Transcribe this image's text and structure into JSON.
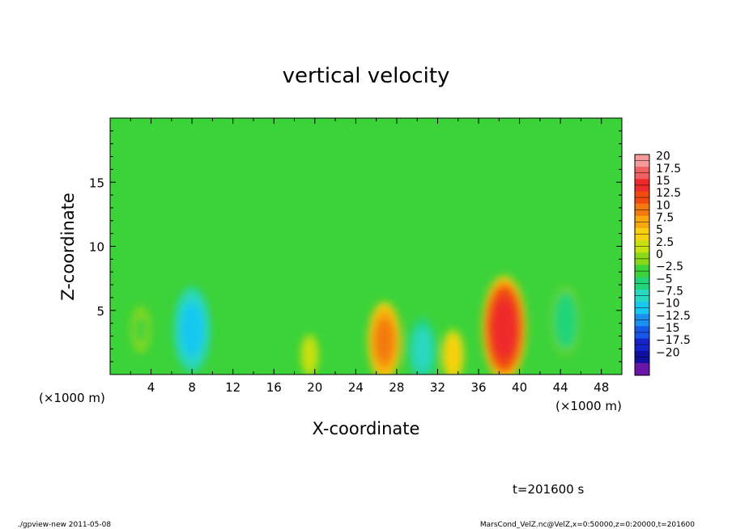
{
  "chart_data": {
    "type": "heatmap",
    "title": "vertical velocity",
    "xlabel": "X-coordinate",
    "ylabel": "Z-coordinate",
    "x_unit": "(×1000 m)",
    "y_unit": "(×1000 m)",
    "xlim": [
      0,
      50
    ],
    "ylim": [
      0,
      20
    ],
    "x_ticks": [
      "4",
      "8",
      "12",
      "16",
      "20",
      "24",
      "28",
      "32",
      "36",
      "40",
      "44",
      "48"
    ],
    "y_ticks": [
      "5",
      "10",
      "15"
    ],
    "colorbar": {
      "levels": [
        "20",
        "17.5",
        "15",
        "12.5",
        "10",
        "7.5",
        "5",
        "2.5",
        "0",
        "−2.5",
        "−5",
        "−7.5",
        "−10",
        "−12.5",
        "−15",
        "−17.5",
        "−20"
      ],
      "colors": [
        "#f59a9a",
        "#f06262",
        "#ee2a2a",
        "#f04a10",
        "#f27a10",
        "#f7a810",
        "#f8d010",
        "#c8e010",
        "#8ad81a",
        "#3cd23a",
        "#22d478",
        "#2ad8c0",
        "#18c8f0",
        "#1c90f0",
        "#1858e8",
        "#1424c8",
        "#1010a0",
        "#6a14a8"
      ]
    },
    "background_value": 0,
    "features": [
      {
        "x": 8.0,
        "z": 3.5,
        "value": -12
      },
      {
        "x": 26.8,
        "z": 2.6,
        "value": 9
      },
      {
        "x": 30.5,
        "z": 1.9,
        "value": -9
      },
      {
        "x": 38.5,
        "z": 3.6,
        "value": 14
      },
      {
        "x": 44.5,
        "z": 4.2,
        "value": -7
      },
      {
        "x": 33.5,
        "z": 1.5,
        "value": 4
      },
      {
        "x": 19.5,
        "z": 1.5,
        "value": 2
      },
      {
        "x": 3.0,
        "z": 3.5,
        "value": -3
      }
    ]
  },
  "annotations": {
    "time": "t=201600 s",
    "footer_left": "./gpview-new  2011-05-08",
    "footer_right": "MarsCond_VelZ.nc@VelZ,x=0:50000,z=0:20000,t=201600"
  }
}
